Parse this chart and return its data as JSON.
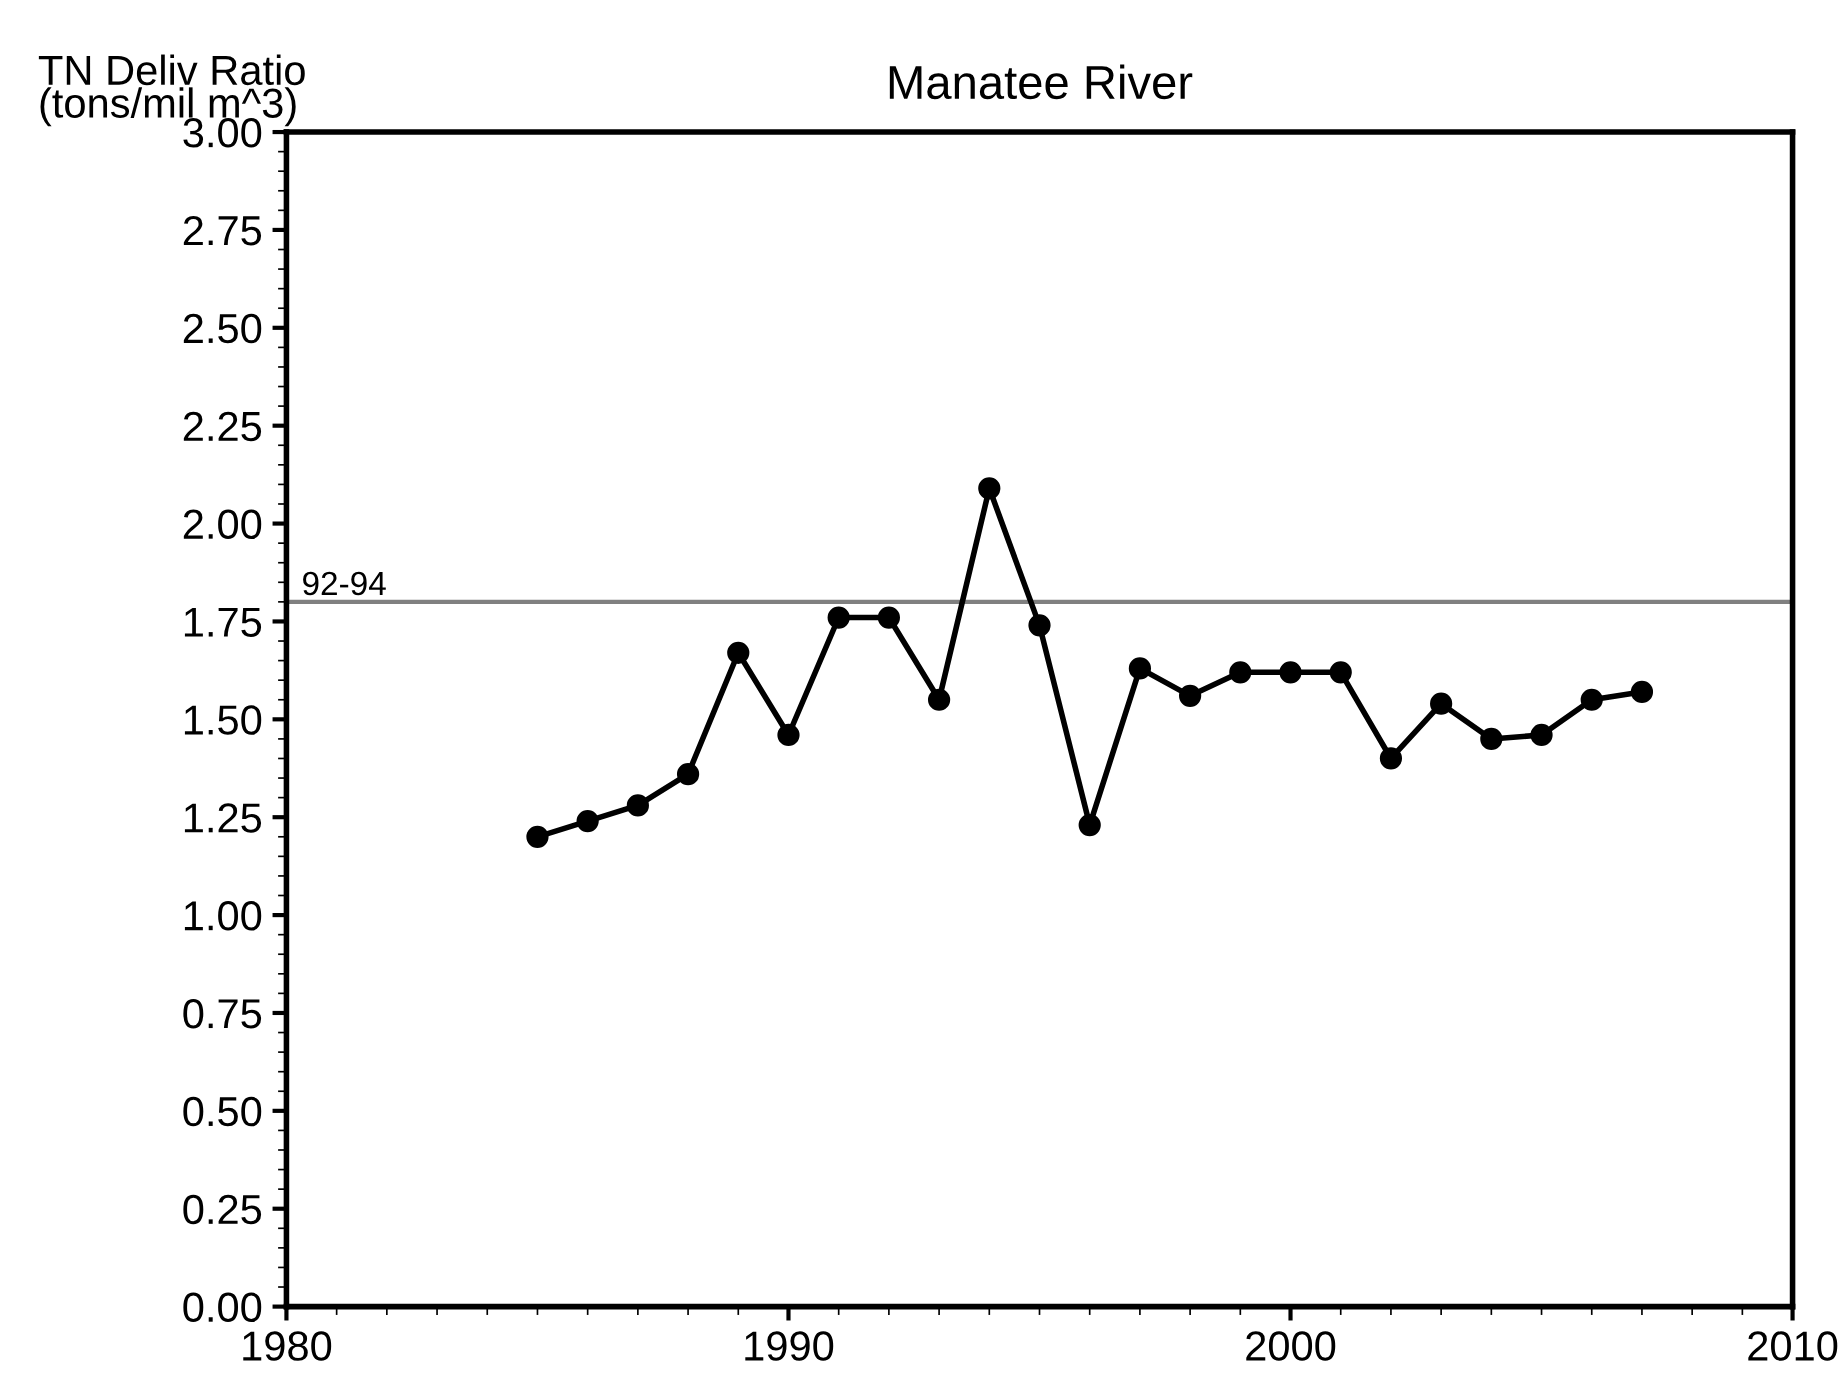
{
  "chart_data": {
    "type": "line",
    "title": "Manatee River",
    "ylabel": "TN Deliv Ratio\n(tons/mil m^3)",
    "x": [
      1985,
      1986,
      1987,
      1988,
      1989,
      1990,
      1991,
      1992,
      1993,
      1994,
      1995,
      1996,
      1997,
      1998,
      1999,
      2000,
      2001,
      2002,
      2003,
      2004,
      2005,
      2006,
      2007
    ],
    "series": [
      {
        "color": "#000000",
        "values": [
          1.2,
          1.24,
          1.28,
          1.36,
          1.67,
          1.46,
          1.76,
          1.76,
          1.55,
          2.09,
          1.74,
          1.23,
          1.63,
          1.56,
          1.62,
          1.62,
          1.62,
          1.4,
          1.54,
          1.45,
          1.46,
          1.55,
          1.57
        ]
      }
    ],
    "xlim": [
      1980,
      2010
    ],
    "xticks": [
      1980,
      1990,
      2000,
      2010
    ],
    "ylim": [
      0,
      3
    ],
    "yticks": [
      {
        "value": 0,
        "label": "0.00"
      },
      {
        "value": 0.25,
        "label": "0.25"
      },
      {
        "value": 0.5,
        "label": "0.50"
      },
      {
        "value": 0.75,
        "label": "0.75"
      },
      {
        "value": 1,
        "label": "1.00"
      },
      {
        "value": 1.25,
        "label": "1.25"
      },
      {
        "value": 1.5,
        "label": "1.50"
      },
      {
        "value": 1.75,
        "label": "1.75"
      },
      {
        "value": 2,
        "label": "2.00"
      },
      {
        "value": 2.25,
        "label": "2.25"
      },
      {
        "value": 2.5,
        "label": "2.50"
      },
      {
        "value": 2.75,
        "label": "2.75"
      },
      {
        "value": 3,
        "label": "3.00"
      }
    ],
    "ref_lines": [
      {
        "axis": "y",
        "value": 1.8,
        "color": "#808080"
      }
    ],
    "annotations": [
      "92-94"
    ],
    "marker": "circle",
    "line_style": "solid",
    "grid": false,
    "legend": false
  }
}
